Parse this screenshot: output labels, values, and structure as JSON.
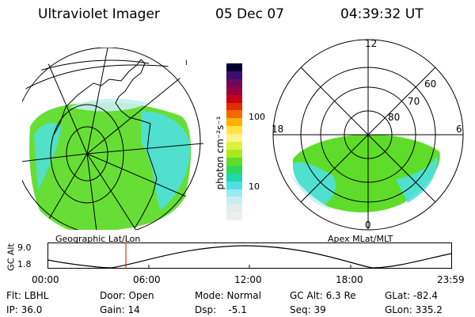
{
  "header": {
    "instrument": "Ultraviolet Imager",
    "date": "05 Dec 07",
    "time": "04:39:32 UT"
  },
  "left_panel": {
    "caption": "Geographic Lat/Lon"
  },
  "right_panel": {
    "caption": "Apex MLat/MLT",
    "mlt_labels": [
      "12",
      "18",
      "6",
      "0"
    ],
    "mlat_labels": [
      "60",
      "70",
      "80"
    ]
  },
  "colorbar": {
    "label": "photon cm⁻²s⁻¹",
    "ticks": [
      "100",
      "10"
    ],
    "colors": [
      "#000030",
      "#3a0f6b",
      "#6b0a5c",
      "#9a003e",
      "#c80018",
      "#e03000",
      "#f26a00",
      "#ffb000",
      "#ffe24a",
      "#fff28a",
      "#d9f43a",
      "#a8e81c",
      "#5fdc2a",
      "#2fd85a",
      "#22d8a8",
      "#4fe0e0",
      "#9aeaf0",
      "#c9eef0",
      "#e2eeea",
      "#eeeeee"
    ]
  },
  "timeline": {
    "ylabel": "GC Alt",
    "y_ticks": [
      "9.0",
      "1.8"
    ],
    "x_ticks": [
      "00:00",
      "06:00",
      "12:00",
      "18:00",
      "23:59"
    ],
    "current_time_hours": 4.66
  },
  "status": {
    "flt": "Flt: LBHL",
    "ip": "IP: 36.0",
    "door": "Door: Open",
    "gain": "Gain: 14",
    "mode": "Mode: Normal",
    "dsp": "Dsp:    -5.1",
    "gcalt": "GC Alt: 6.3 Re",
    "seq": "Seq: 39",
    "glat": "GLat: -82.4",
    "glon": "GLon: 335.2"
  },
  "colors": {
    "aurora_green": "#5fdc2a",
    "aurora_cyan": "#4fe0e0",
    "marker_red": "#e00000"
  }
}
